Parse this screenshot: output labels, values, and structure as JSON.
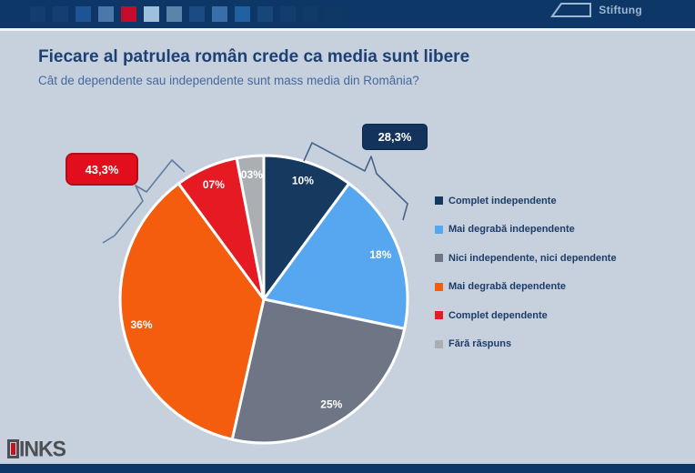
{
  "header": {
    "brand": "Stiftung",
    "mosaic_colors": [
      "#123d6e",
      "#133f72",
      "#1d5494",
      "#4a78a9",
      "#c60c2c",
      "#9fc0dc",
      "#5d83ab",
      "#1b4b82",
      "#3a6ea6",
      "#2161a2",
      "#174678",
      "#123e6f",
      "#103a68",
      "#0f3865"
    ]
  },
  "chart_data": {
    "type": "pie",
    "title": "Fiecare al patrulea român crede ca media sunt libere",
    "subtitle": "Cât de dependente sau independente sunt mass media din România?",
    "legend_position": "right",
    "start_angle_deg": 0,
    "direction": "clockwise",
    "slices": [
      {
        "label": "Complet independente",
        "value": 10,
        "display": "10%",
        "color": "#16395f"
      },
      {
        "label": "Mai degrabă independente",
        "value": 18,
        "display": "18%",
        "color": "#57a7f0"
      },
      {
        "label": "Nici independente, nici dependente",
        "value": 25,
        "display": "25%",
        "color": "#6e7584"
      },
      {
        "label": "Mai degrabă dependente",
        "value": 36,
        "display": "36%",
        "color": "#f45c0e"
      },
      {
        "label": "Complet dependente",
        "value": 7,
        "display": "07%",
        "color": "#e51a22"
      },
      {
        "label": "Fără răspuns",
        "value": 3,
        "display": "03%",
        "color": "#abaeb3"
      }
    ],
    "callouts": [
      {
        "text": "28,3%",
        "color": "#14335c"
      },
      {
        "text": "43,3%",
        "color": "#e30e1d"
      }
    ]
  },
  "watermark": {
    "initial": "L",
    "rest": "INKS"
  }
}
